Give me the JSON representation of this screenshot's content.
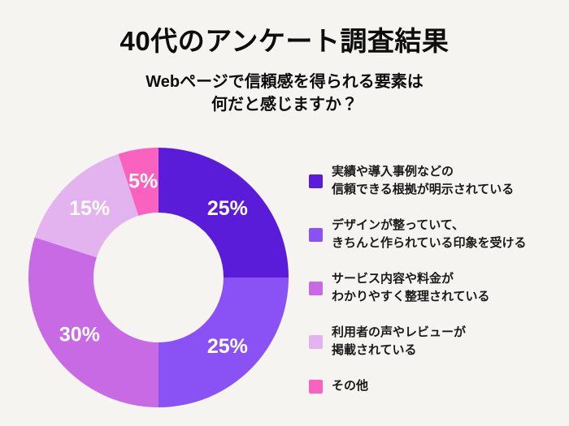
{
  "page": {
    "background": "#f5f4f1"
  },
  "header": {
    "title": "40代のアンケート調査結果",
    "subtitle_line1": "Webページで信頼感を得られる要素は",
    "subtitle_line2": "何だと感じますか？"
  },
  "chart_data": {
    "type": "pie",
    "variant": "donut",
    "title": "40代のアンケート調査結果",
    "question": "Webページで信頼感を得られる要素は何だと感じますか？",
    "unit": "%",
    "start_angle_deg": 0,
    "direction": "clockwise",
    "inner_radius_ratio": 0.5,
    "value_label_color": "#ffffff",
    "slices": [
      {
        "label": "実績や導入事例などの信頼できる根拠が明示されている",
        "value": 25,
        "color": "#5a1cd9"
      },
      {
        "label": "デザインが整っていて、きちんと作られている印象を受ける",
        "value": 25,
        "color": "#8a52f5"
      },
      {
        "label": "サービス内容や料金がわかりやすく整理されている",
        "value": 30,
        "color": "#c76ae3"
      },
      {
        "label": "利用者の声やレビューが掲載されている",
        "value": 15,
        "color": "#e3b3f0"
      },
      {
        "label": "その他",
        "value": 5,
        "color": "#f962be"
      }
    ]
  },
  "legend": {
    "items": [
      {
        "lines": [
          "実績や導入事例などの",
          "信頼できる根拠が明示されている"
        ],
        "color": "#5a1cd9"
      },
      {
        "lines": [
          "デザインが整っていて、",
          "きちんと作られている印象を受ける"
        ],
        "color": "#8a52f5"
      },
      {
        "lines": [
          "サービス内容や料金が",
          "わかりやすく整理されている"
        ],
        "color": "#c76ae3"
      },
      {
        "lines": [
          "利用者の声やレビューが",
          "掲載されている"
        ],
        "color": "#e3b3f0"
      },
      {
        "lines": [
          "その他"
        ],
        "color": "#f962be"
      }
    ]
  }
}
